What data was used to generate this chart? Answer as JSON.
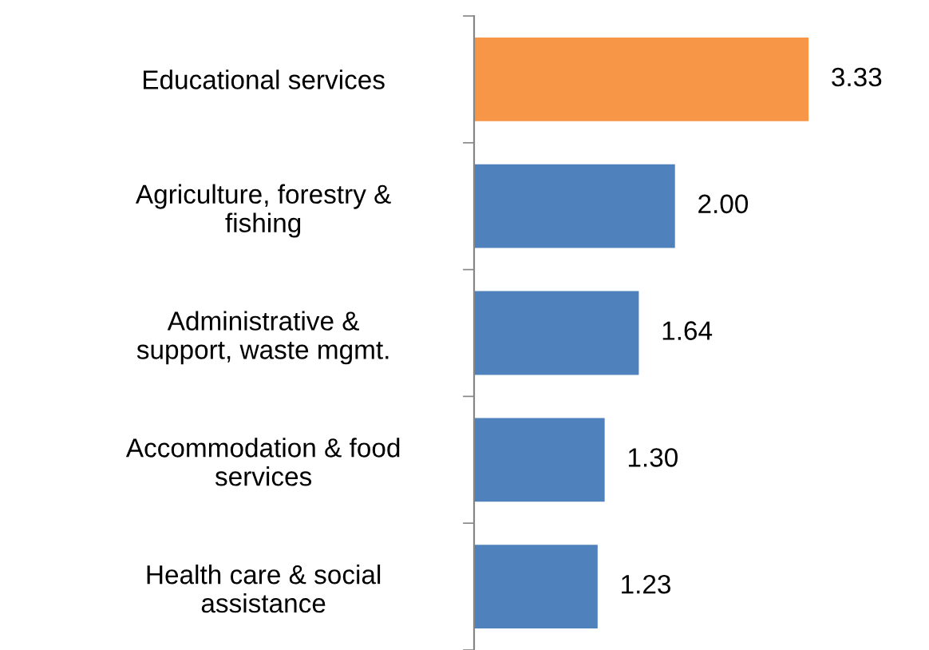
{
  "chart_data": {
    "type": "bar",
    "orientation": "horizontal",
    "categories": [
      "Educational services",
      "Agriculture, forestry &\nfishing",
      "Administrative &\nsupport, waste mgmt.",
      "Accommodation & food\nservices",
      "Health care & social\nassistance"
    ],
    "values": [
      3.33,
      2.0,
      1.64,
      1.3,
      1.23
    ],
    "colors": [
      "#f79646",
      "#4f81bd",
      "#4f81bd",
      "#4f81bd",
      "#4f81bd"
    ],
    "value_labels": [
      "3.33",
      "2.00",
      "1.64",
      "1.30",
      "1.23"
    ],
    "grid": false,
    "legend": false
  }
}
